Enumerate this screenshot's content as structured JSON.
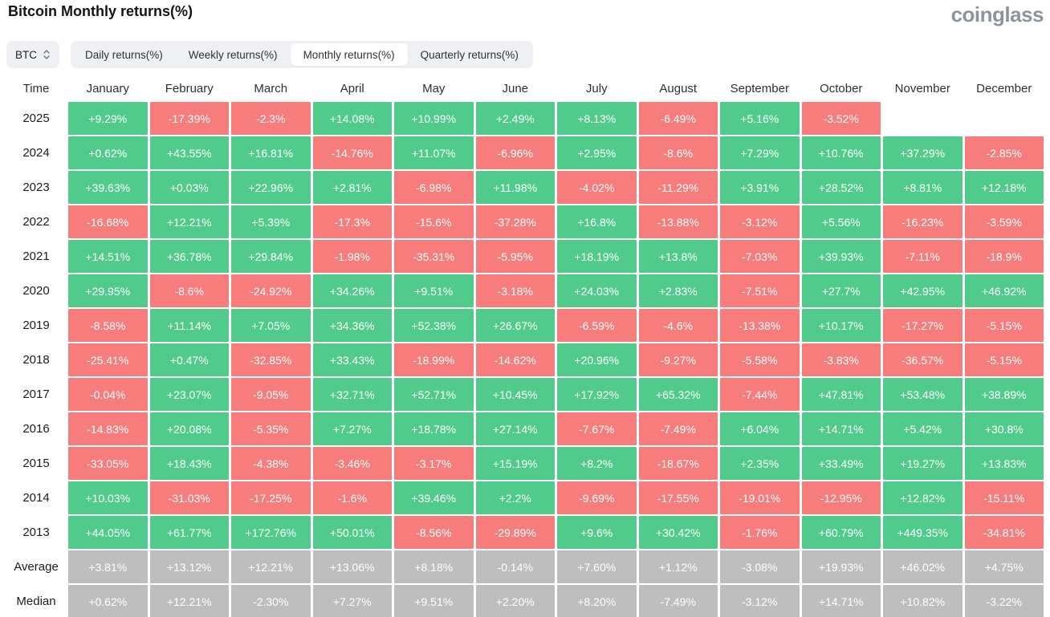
{
  "header": {
    "title": "Bitcoin Monthly returns(%)",
    "logo": "coinglass"
  },
  "controls": {
    "coin": "BTC",
    "tabs": [
      "Daily returns(%)",
      "Weekly returns(%)",
      "Monthly returns(%)",
      "Quarterly returns(%)"
    ],
    "active_tab": 2
  },
  "colors": {
    "positive": "#50CB8C",
    "negative": "#F77C7C",
    "neutral": "#BEBEBE"
  },
  "chart_data": {
    "type": "heatmap",
    "title": "Bitcoin Monthly returns(%)",
    "columns": [
      "Time",
      "January",
      "February",
      "March",
      "April",
      "May",
      "June",
      "July",
      "August",
      "September",
      "October",
      "November",
      "December"
    ],
    "rows": [
      {
        "label": "2025",
        "stat": false,
        "cells": [
          "+9.29%",
          "-17.39%",
          "-2.3%",
          "+14.08%",
          "+10.99%",
          "+2.49%",
          "+8.13%",
          "-6.49%",
          "+5.16%",
          "-3.52%",
          "",
          ""
        ]
      },
      {
        "label": "2024",
        "stat": false,
        "cells": [
          "+0.62%",
          "+43.55%",
          "+16.81%",
          "-14.76%",
          "+11.07%",
          "-6.96%",
          "+2.95%",
          "-8.6%",
          "+7.29%",
          "+10.76%",
          "+37.29%",
          "-2.85%"
        ]
      },
      {
        "label": "2023",
        "stat": false,
        "cells": [
          "+39.63%",
          "+0.03%",
          "+22.96%",
          "+2.81%",
          "-6.98%",
          "+11.98%",
          "-4.02%",
          "-11.29%",
          "+3.91%",
          "+28.52%",
          "+8.81%",
          "+12.18%"
        ]
      },
      {
        "label": "2022",
        "stat": false,
        "cells": [
          "-16.68%",
          "+12.21%",
          "+5.39%",
          "-17.3%",
          "-15.6%",
          "-37.28%",
          "+16.8%",
          "-13.88%",
          "-3.12%",
          "+5.56%",
          "-16.23%",
          "-3.59%"
        ]
      },
      {
        "label": "2021",
        "stat": false,
        "cells": [
          "+14.51%",
          "+36.78%",
          "+29.84%",
          "-1.98%",
          "-35.31%",
          "-5.95%",
          "+18.19%",
          "+13.8%",
          "-7.03%",
          "+39.93%",
          "-7.11%",
          "-18.9%"
        ]
      },
      {
        "label": "2020",
        "stat": false,
        "cells": [
          "+29.95%",
          "-8.6%",
          "-24.92%",
          "+34.26%",
          "+9.51%",
          "-3.18%",
          "+24.03%",
          "+2.83%",
          "-7.51%",
          "+27.7%",
          "+42.95%",
          "+46.92%"
        ]
      },
      {
        "label": "2019",
        "stat": false,
        "cells": [
          "-8.58%",
          "+11.14%",
          "+7.05%",
          "+34.36%",
          "+52.38%",
          "+26.67%",
          "-6.59%",
          "-4.6%",
          "-13.38%",
          "+10.17%",
          "-17.27%",
          "-5.15%"
        ]
      },
      {
        "label": "2018",
        "stat": false,
        "cells": [
          "-25.41%",
          "+0.47%",
          "-32.85%",
          "+33.43%",
          "-18.99%",
          "-14.62%",
          "+20.96%",
          "-9.27%",
          "-5.58%",
          "-3.83%",
          "-36.57%",
          "-5.15%"
        ]
      },
      {
        "label": "2017",
        "stat": false,
        "cells": [
          "-0.04%",
          "+23.07%",
          "-9.05%",
          "+32.71%",
          "+52.71%",
          "+10.45%",
          "+17.92%",
          "+65.32%",
          "-7.44%",
          "+47.81%",
          "+53.48%",
          "+38.89%"
        ]
      },
      {
        "label": "2016",
        "stat": false,
        "cells": [
          "-14.83%",
          "+20.08%",
          "-5.35%",
          "+7.27%",
          "+18.78%",
          "+27.14%",
          "-7.67%",
          "-7.49%",
          "+6.04%",
          "+14.71%",
          "+5.42%",
          "+30.8%"
        ]
      },
      {
        "label": "2015",
        "stat": false,
        "cells": [
          "-33.05%",
          "+18.43%",
          "-4.38%",
          "-3.46%",
          "-3.17%",
          "+15.19%",
          "+8.2%",
          "-18.67%",
          "+2.35%",
          "+33.49%",
          "+19.27%",
          "+13.83%"
        ]
      },
      {
        "label": "2014",
        "stat": false,
        "cells": [
          "+10.03%",
          "-31.03%",
          "-17.25%",
          "-1.6%",
          "+39.46%",
          "+2.2%",
          "-9.69%",
          "-17.55%",
          "-19.01%",
          "-12.95%",
          "+12.82%",
          "-15.11%"
        ]
      },
      {
        "label": "2013",
        "stat": false,
        "cells": [
          "+44.05%",
          "+61.77%",
          "+172.76%",
          "+50.01%",
          "-8.56%",
          "-29.89%",
          "+9.6%",
          "+30.42%",
          "-1.76%",
          "+60.79%",
          "+449.35%",
          "-34.81%"
        ]
      },
      {
        "label": "Average",
        "stat": true,
        "cells": [
          "+3.81%",
          "+13.12%",
          "+12.21%",
          "+13.06%",
          "+8.18%",
          "-0.14%",
          "+7.60%",
          "+1.12%",
          "-3.08%",
          "+19.93%",
          "+46.02%",
          "+4.75%"
        ]
      },
      {
        "label": "Median",
        "stat": true,
        "cells": [
          "+0.62%",
          "+12.21%",
          "-2.30%",
          "+7.27%",
          "+9.51%",
          "+2.20%",
          "+8.20%",
          "-7.49%",
          "-3.12%",
          "+14.71%",
          "+10.82%",
          "-3.22%"
        ]
      }
    ]
  }
}
